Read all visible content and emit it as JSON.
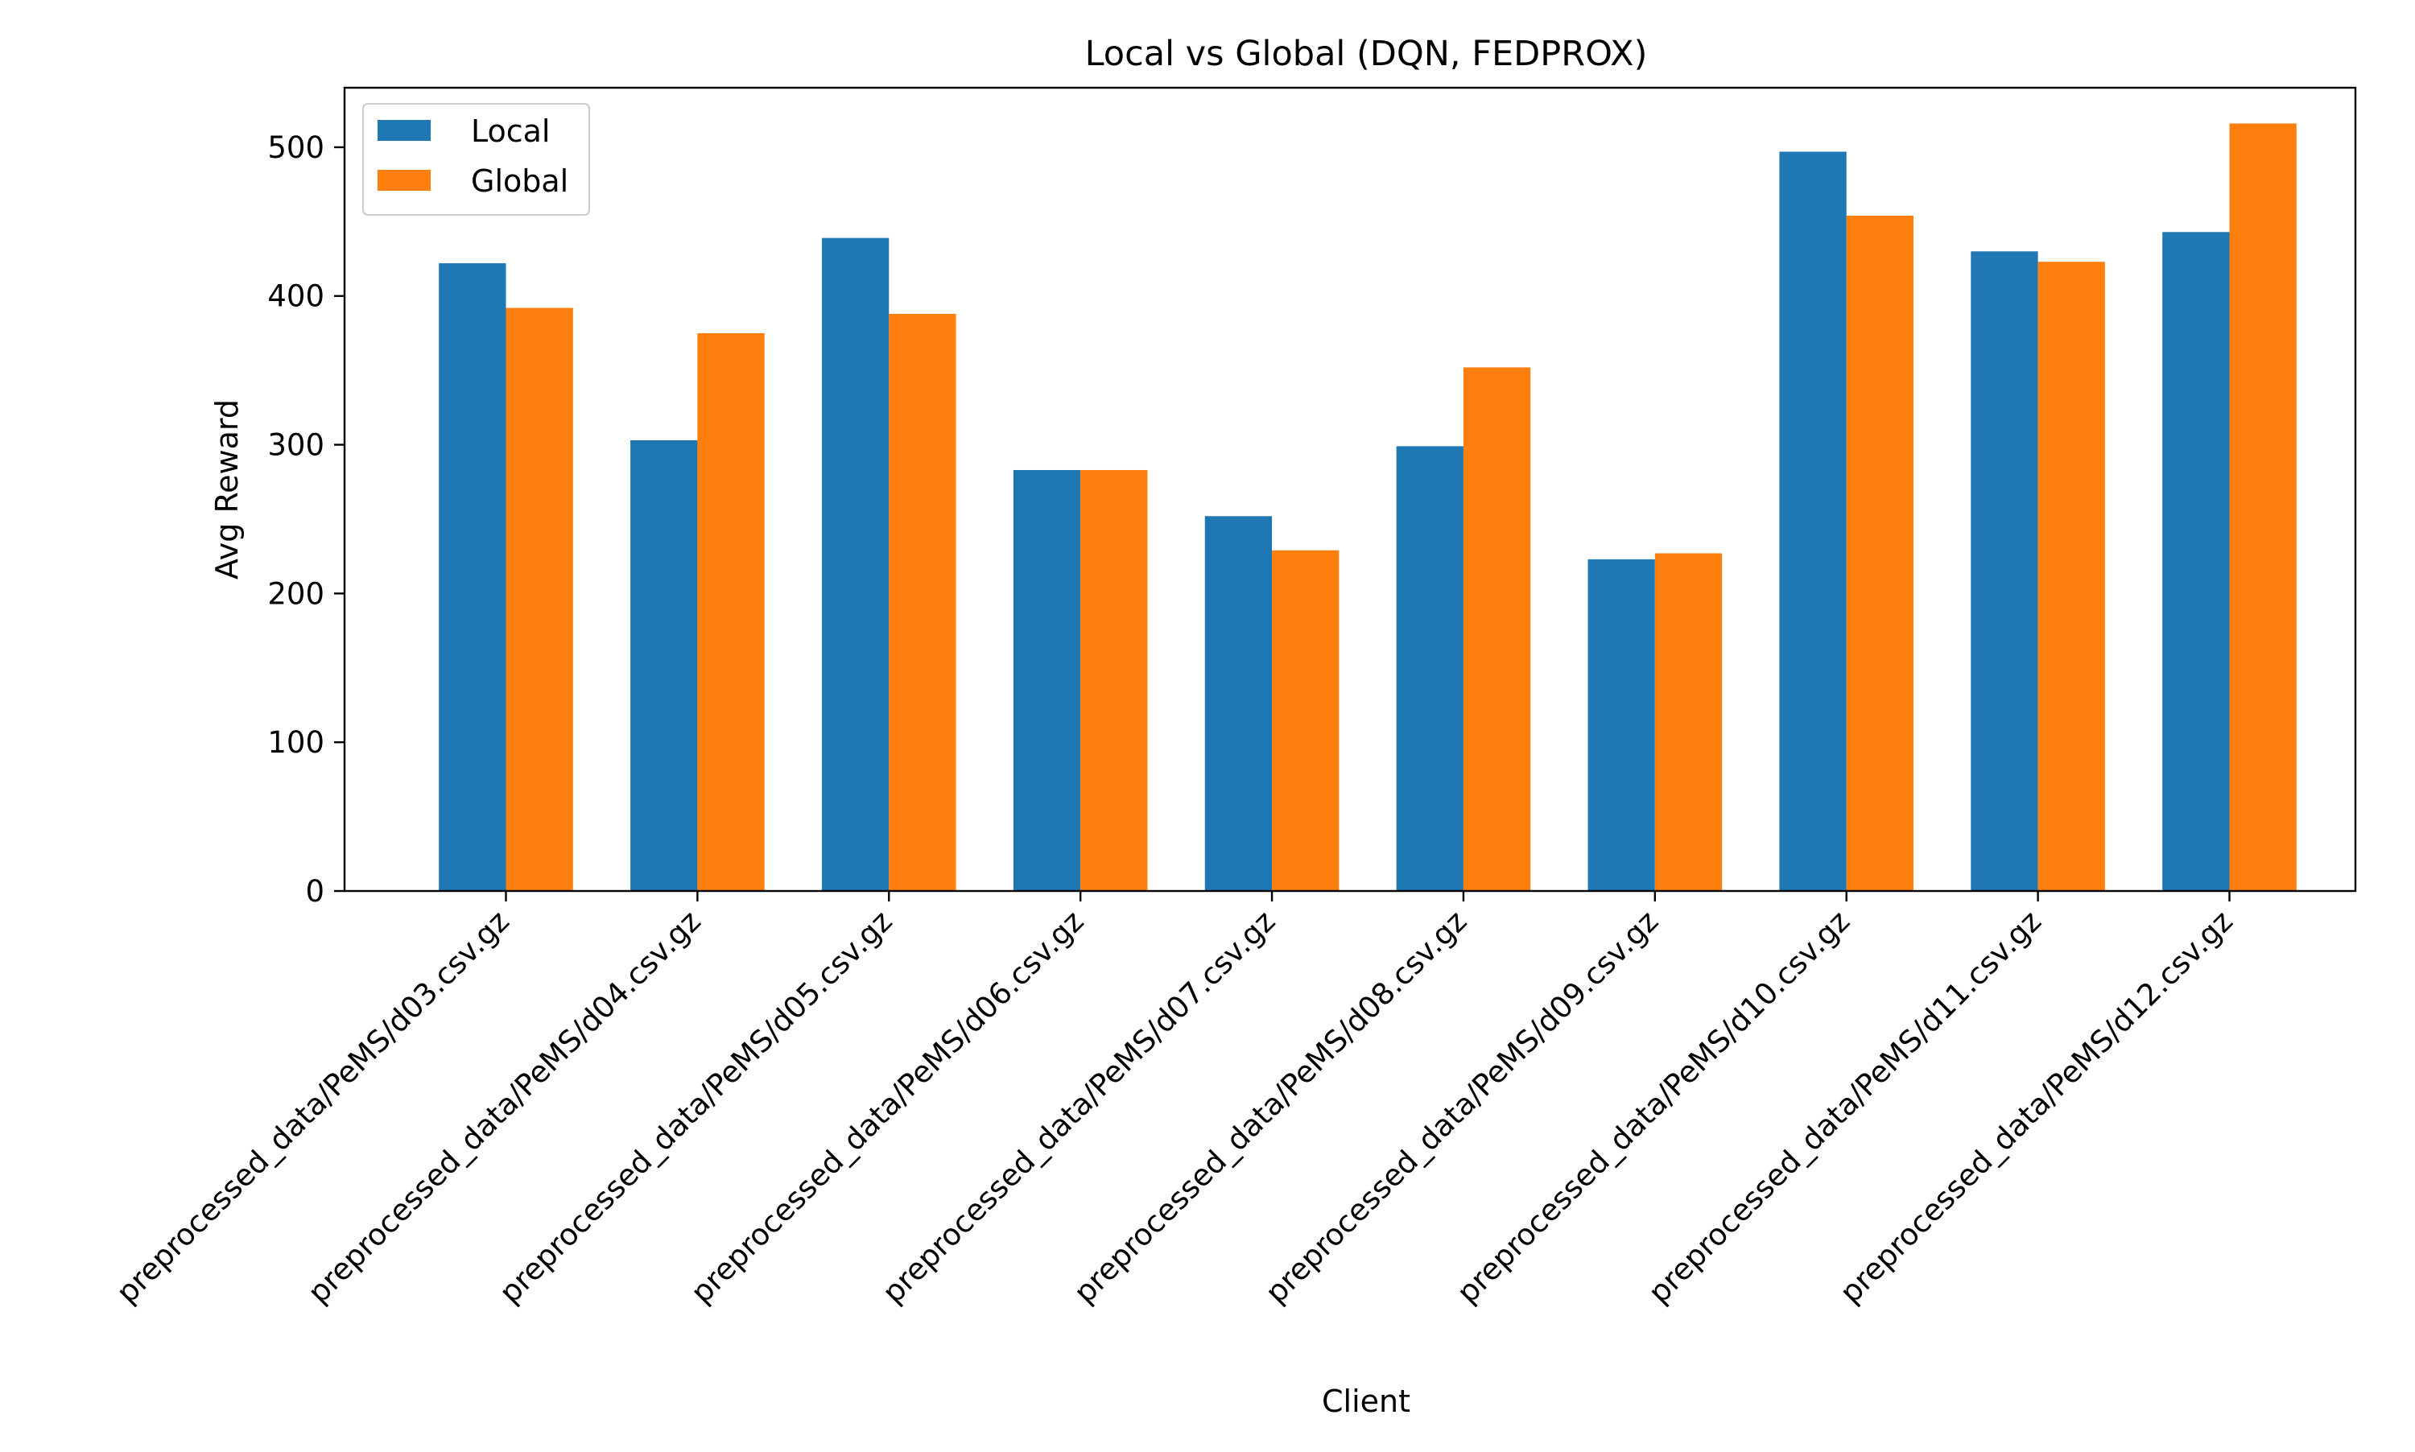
{
  "chart_data": {
    "type": "bar",
    "title": "Local vs Global (DQN, FEDPROX)",
    "xlabel": "Client",
    "ylabel": "Avg Reward",
    "ylim": [
      0,
      540
    ],
    "yticks": [
      0,
      100,
      200,
      300,
      400,
      500
    ],
    "grid": false,
    "legend_position": "top-left",
    "categories": [
      "preprocessed_data/PeMS/d03.csv.gz",
      "preprocessed_data/PeMS/d04.csv.gz",
      "preprocessed_data/PeMS/d05.csv.gz",
      "preprocessed_data/PeMS/d06.csv.gz",
      "preprocessed_data/PeMS/d07.csv.gz",
      "preprocessed_data/PeMS/d08.csv.gz",
      "preprocessed_data/PeMS/d09.csv.gz",
      "preprocessed_data/PeMS/d10.csv.gz",
      "preprocessed_data/PeMS/d11.csv.gz",
      "preprocessed_data/PeMS/d12.csv.gz"
    ],
    "series": [
      {
        "name": "Local",
        "color": "#1f77b4",
        "values": [
          422,
          303,
          439,
          283,
          252,
          299,
          223,
          497,
          430,
          443
        ]
      },
      {
        "name": "Global",
        "color": "#ff7f0e",
        "values": [
          392,
          375,
          388,
          283,
          229,
          352,
          227,
          454,
          423,
          516
        ]
      }
    ]
  }
}
